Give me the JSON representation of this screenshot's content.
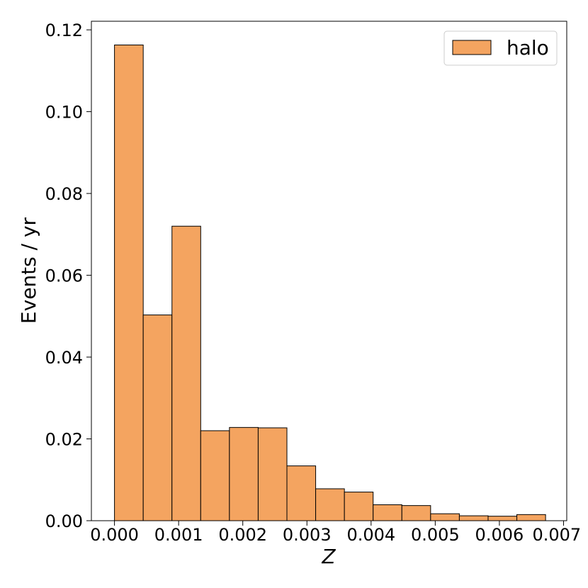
{
  "chart_data": {
    "type": "bar",
    "bin_edges": [
      0.0,
      0.000448,
      0.000896,
      0.001344,
      0.001792,
      0.00224,
      0.002688,
      0.003136,
      0.003584,
      0.004032,
      0.00448,
      0.004928,
      0.005376,
      0.005824,
      0.006272,
      0.00672
    ],
    "series": [
      {
        "name": "halo",
        "values": [
          0.1163,
          0.0503,
          0.072,
          0.022,
          0.0228,
          0.0227,
          0.0134,
          0.0078,
          0.007,
          0.0039,
          0.0037,
          0.0017,
          0.0012,
          0.0011,
          0.0015
        ]
      }
    ],
    "xlabel": "Z",
    "ylabel": "Events / yr",
    "xlim": [
      -0.00036,
      0.00705
    ],
    "ylim": [
      0.0,
      0.1221
    ],
    "xticks": [
      0.0,
      0.001,
      0.002,
      0.003,
      0.004,
      0.005,
      0.006,
      0.007
    ],
    "xtick_labels": [
      "0.000",
      "0.001",
      "0.002",
      "0.003",
      "0.004",
      "0.005",
      "0.006",
      "0.007"
    ],
    "yticks": [
      0.0,
      0.02,
      0.04,
      0.06,
      0.08,
      0.1,
      0.12
    ],
    "ytick_labels": [
      "0.00",
      "0.02",
      "0.04",
      "0.06",
      "0.08",
      "0.10",
      "0.12"
    ],
    "legend_position": "top-right",
    "grid": false,
    "colors": {
      "bar_fill": "#f4a460",
      "bar_edge": "#000000"
    }
  }
}
